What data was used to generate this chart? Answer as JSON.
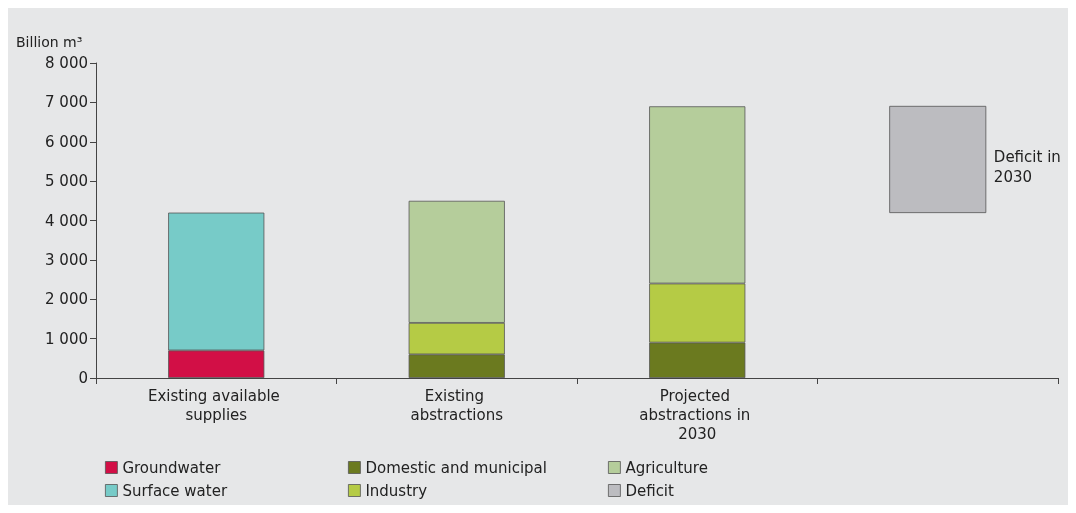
{
  "chart_data": {
    "type": "bar",
    "stacked": true,
    "ylabel": "Billion m³",
    "categories": [
      "Existing available supplies",
      "Existing abstractions",
      "Projected abstractions in 2030",
      null
    ],
    "series": [
      {
        "name": "Groundwater",
        "color": "#d20f46",
        "values": [
          700,
          null,
          null,
          null
        ]
      },
      {
        "name": "Surface water",
        "color": "#77cbc8",
        "values": [
          3500,
          null,
          null,
          null
        ]
      },
      {
        "name": "Domestic and municipal",
        "color": "#6b7a1f",
        "values": [
          null,
          600,
          900,
          null
        ]
      },
      {
        "name": "Industry",
        "color": "#b5cb45",
        "values": [
          null,
          800,
          1500,
          null
        ]
      },
      {
        "name": "Agriculture",
        "color": "#b5cd9b",
        "values": [
          null,
          3100,
          4500,
          null
        ]
      },
      {
        "name": "Deficit",
        "color": "#bcbcc0",
        "values": [
          null,
          null,
          null,
          2700
        ],
        "base": [
          null,
          null,
          null,
          4200
        ]
      }
    ],
    "ylim": [
      0,
      8000
    ],
    "yticks": [
      {
        "value": 0,
        "label": "0"
      },
      {
        "value": 1000,
        "label": "1 000"
      },
      {
        "value": 2000,
        "label": "2 000"
      },
      {
        "value": 3000,
        "label": "3 000"
      },
      {
        "value": 4000,
        "label": "4 000"
      },
      {
        "value": 5000,
        "label": "5 000"
      },
      {
        "value": 6000,
        "label": "6 000"
      },
      {
        "value": 7000,
        "label": "7 000"
      },
      {
        "value": 8000,
        "label": "8 000"
      }
    ],
    "grid": false,
    "legend": "bottom",
    "annotations": [
      "Deficit in 2030"
    ]
  }
}
